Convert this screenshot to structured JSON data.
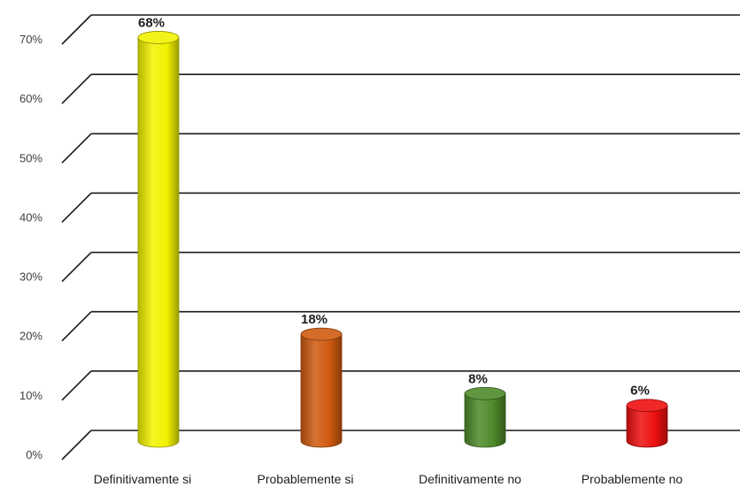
{
  "chart_data": {
    "type": "bar",
    "style": "3d-cylinder",
    "categories": [
      "Definitivamente si",
      "Probablemente si",
      "Definitivamente no",
      "Probablemente no"
    ],
    "values": [
      68,
      18,
      8,
      6
    ],
    "data_labels": [
      "68%",
      "18%",
      "8%",
      "6%"
    ],
    "colors": [
      "#f2f200",
      "#d05a10",
      "#4e8a2a",
      "#ee1010"
    ],
    "ylim": [
      0,
      70
    ],
    "yticks": [
      0,
      10,
      20,
      30,
      40,
      50,
      60,
      70
    ],
    "ytick_labels": [
      "0%",
      "10%",
      "20%",
      "30%",
      "40%",
      "50%",
      "60%",
      "70%"
    ],
    "grid": true,
    "legend": "none",
    "title": "",
    "xlabel": "",
    "ylabel": ""
  }
}
